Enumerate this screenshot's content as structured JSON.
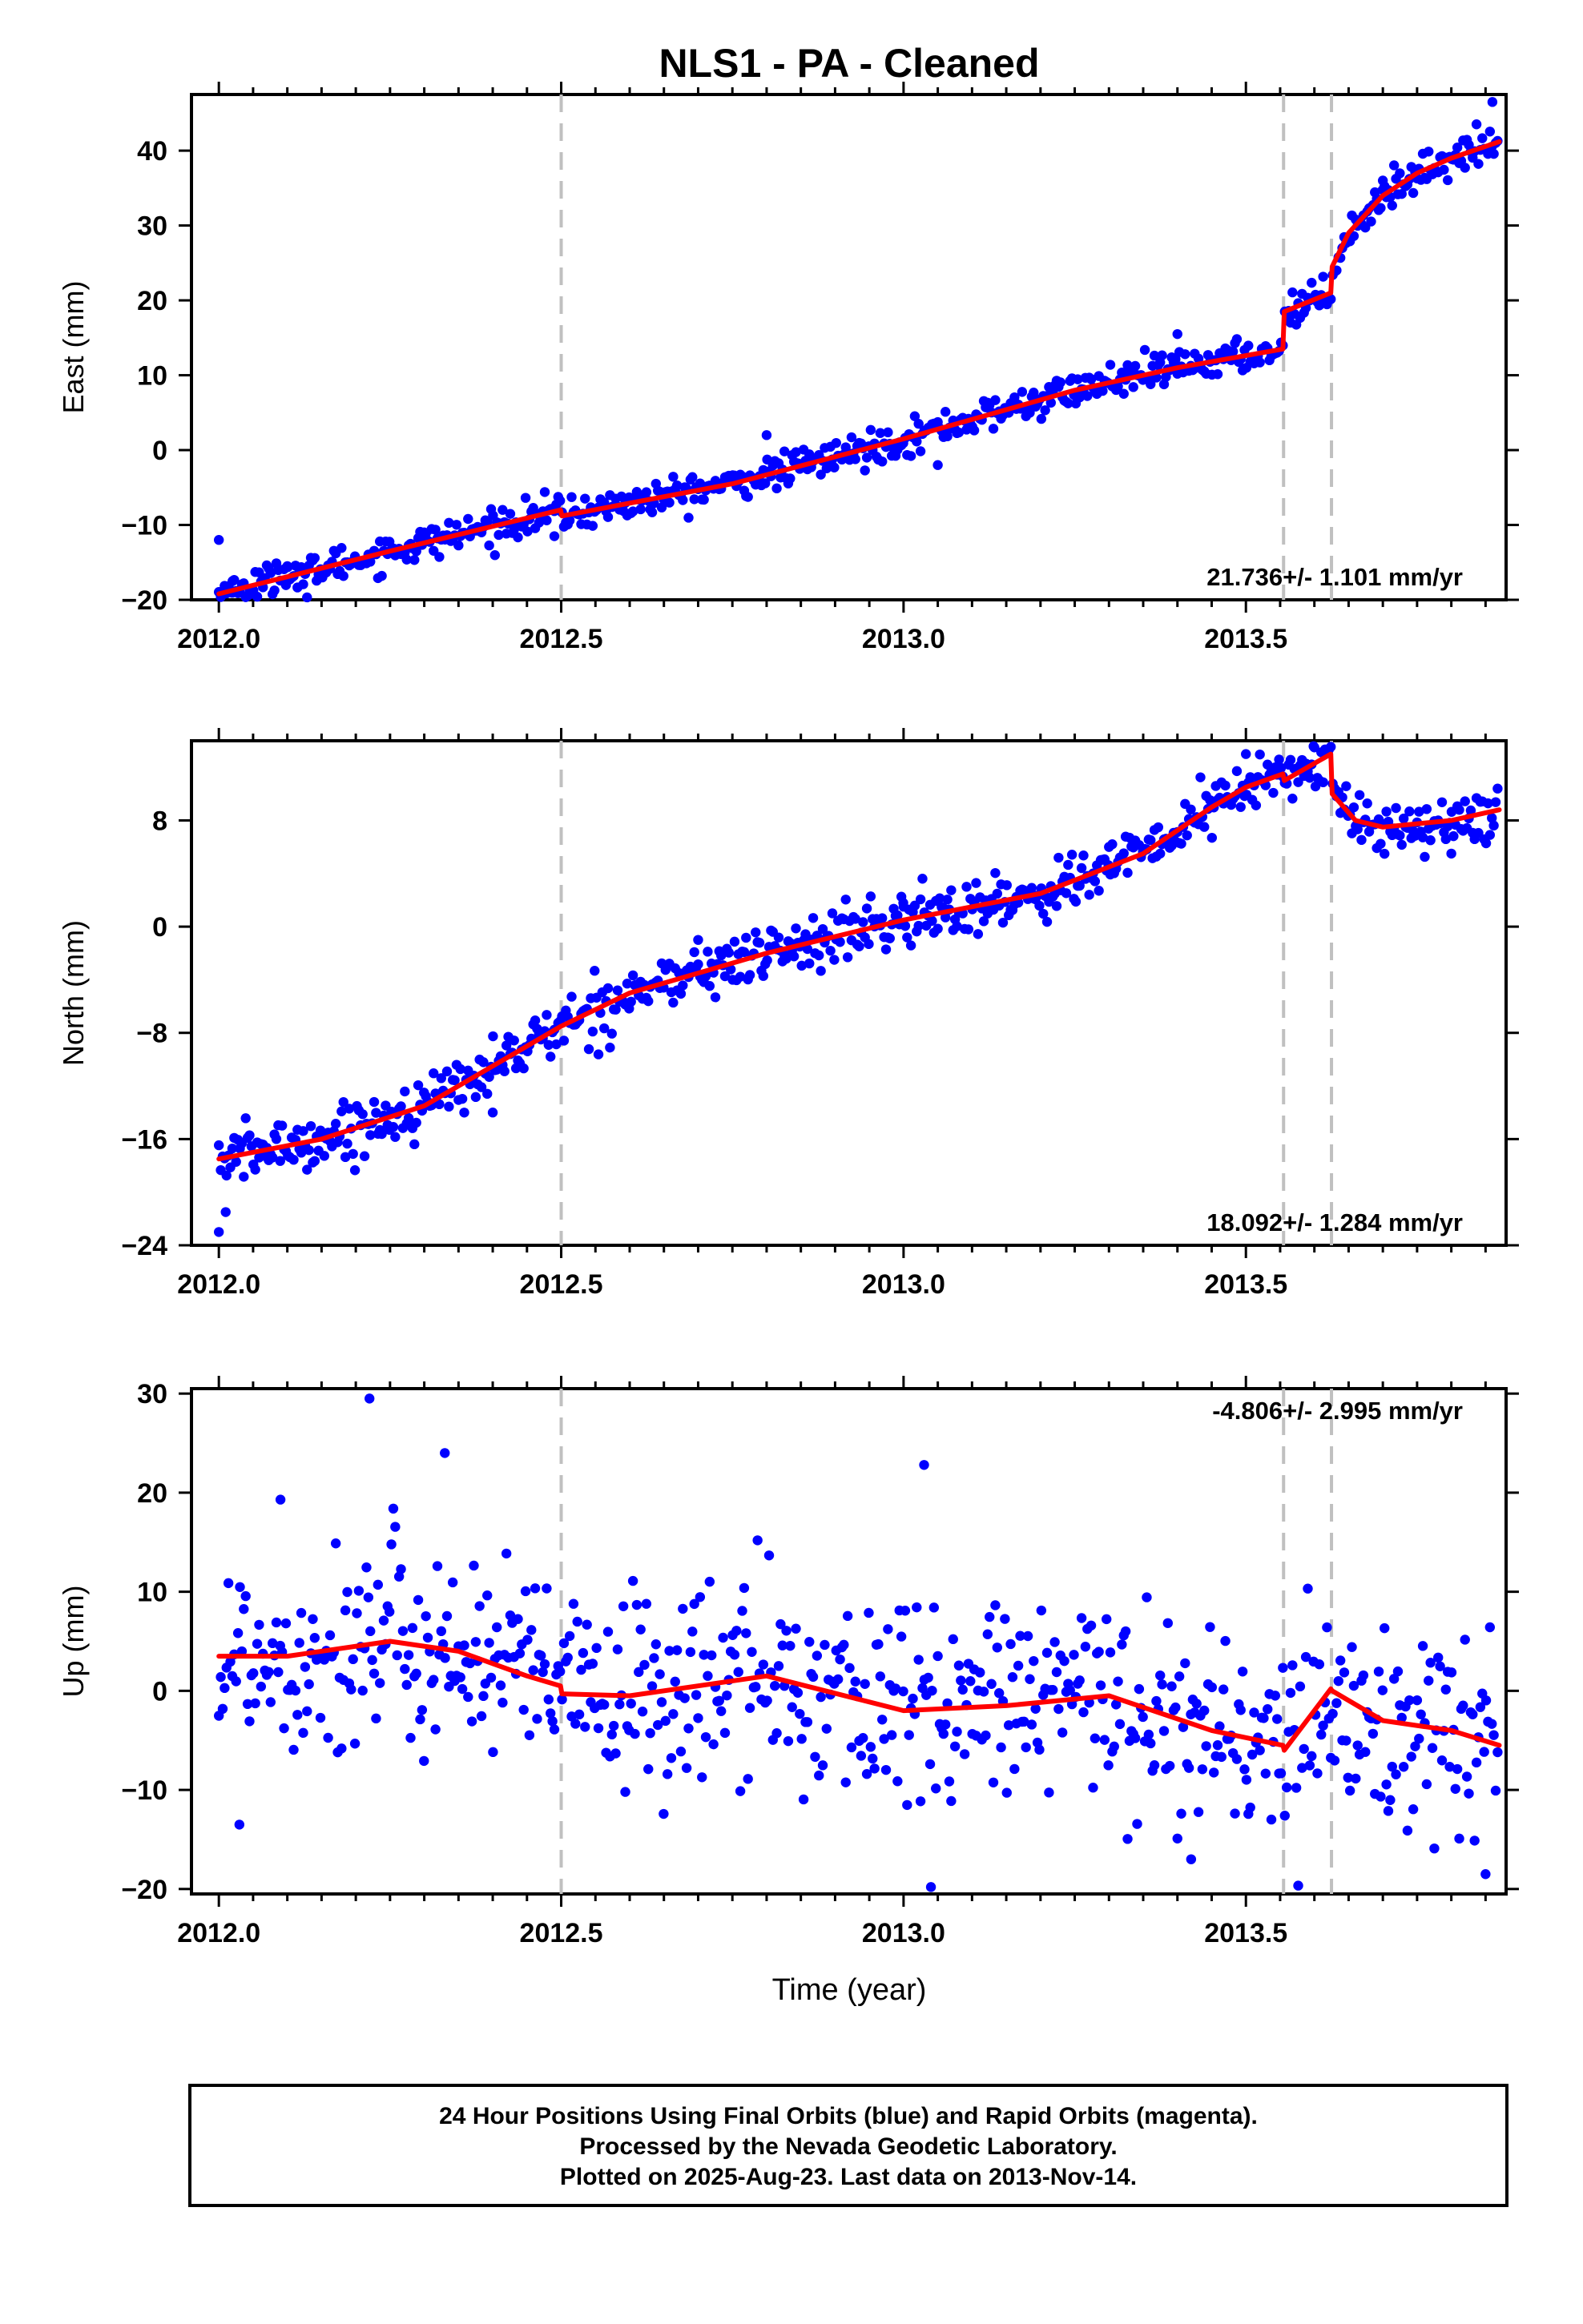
{
  "chart_data": {
    "type": "scatter",
    "title": "NLS1  - PA - Cleaned",
    "xlabel": "Time (year)",
    "xlim": [
      2011.96,
      2013.88
    ],
    "x_ticks": [
      "2012.0",
      "2012.5",
      "2013.0",
      "2013.5"
    ],
    "x_tick_values": [
      2012.0,
      2012.5,
      2013.0,
      2013.5
    ],
    "steps_years": [
      2012.5,
      2013.555,
      2013.625
    ],
    "dot_color": "#0000ff",
    "model_color": "#ff0000",
    "step_line_color": "#c0c0c0",
    "grid": false,
    "panels": [
      {
        "key": "east",
        "ylabel": "East (mm)",
        "ylim": [
          -20,
          47.5
        ],
        "y_ticks": [
          "40",
          "30",
          "20",
          "10",
          "0",
          "−10",
          "−20"
        ],
        "y_tick_values": [
          40,
          30,
          20,
          10,
          0,
          -10,
          -20
        ],
        "rate_label": "21.736+/- 1.101 mm/yr",
        "rate_position": "bottom-right",
        "model_x": [
          2012.0,
          2012.25,
          2012.499,
          2012.501,
          2012.75,
          2013.0,
          2013.25,
          2013.4,
          2013.554,
          2013.556,
          2013.624,
          2013.626,
          2013.65,
          2013.7,
          2013.75,
          2013.8,
          2013.87
        ],
        "model_y": [
          -19.2,
          -13.5,
          -8.0,
          -8.8,
          -4.5,
          1.5,
          8.0,
          11.0,
          13.5,
          18.5,
          21.0,
          24.5,
          29.0,
          34.0,
          37.0,
          39.0,
          41.2
        ],
        "fit_spread": 1.6,
        "sample_points": [
          {
            "x": 2012.0,
            "y": -12.0
          },
          {
            "x": 2012.02,
            "y": -17.5
          },
          {
            "x": 2012.1,
            "y": -15.5
          },
          {
            "x": 2012.3,
            "y": -11.0
          },
          {
            "x": 2012.49,
            "y": -11.5
          },
          {
            "x": 2012.8,
            "y": 2.0
          },
          {
            "x": 2013.05,
            "y": -2.0
          },
          {
            "x": 2013.4,
            "y": 15.5
          },
          {
            "x": 2013.7,
            "y": 36.0
          },
          {
            "x": 2013.86,
            "y": 46.5
          }
        ]
      },
      {
        "key": "north",
        "ylabel": "North (mm)",
        "ylim": [
          -24,
          14
        ],
        "y_ticks": [
          "8",
          "0",
          "−8",
          "−16",
          "−24"
        ],
        "y_tick_values": [
          8,
          0,
          -8,
          -16,
          -24
        ],
        "rate_label": "18.092+/- 1.284 mm/yr",
        "rate_position": "bottom-right",
        "model_x": [
          2012.0,
          2012.15,
          2012.3,
          2012.4,
          2012.5,
          2012.6,
          2012.8,
          2013.0,
          2013.2,
          2013.35,
          2013.45,
          2013.5,
          2013.554,
          2013.556,
          2013.624,
          2013.626,
          2013.66,
          2013.7,
          2013.8,
          2013.87
        ],
        "model_y": [
          -17.5,
          -16.0,
          -13.5,
          -10.5,
          -7.5,
          -5.0,
          -2.0,
          0.5,
          2.5,
          5.5,
          9.0,
          10.5,
          11.5,
          11.0,
          13.0,
          10.0,
          8.0,
          7.5,
          8.0,
          8.8
        ],
        "fit_spread": 1.5,
        "sample_points": [
          {
            "x": 2012.0,
            "y": -23.0
          },
          {
            "x": 2012.01,
            "y": -21.5
          },
          {
            "x": 2012.4,
            "y": -14.0
          },
          {
            "x": 2012.7,
            "y": -1.0
          },
          {
            "x": 2013.0,
            "y": 1.5
          },
          {
            "x": 2013.3,
            "y": 6.0
          },
          {
            "x": 2013.5,
            "y": 13.0
          },
          {
            "x": 2013.6,
            "y": 13.5
          },
          {
            "x": 2013.8,
            "y": 5.5
          }
        ]
      },
      {
        "key": "up",
        "ylabel": "Up (mm)",
        "ylim": [
          -20.5,
          30.5
        ],
        "y_ticks": [
          "30",
          "20",
          "10",
          "0",
          "−10",
          "−20"
        ],
        "y_tick_values": [
          30,
          20,
          10,
          0,
          -10,
          -20
        ],
        "rate_label": "-4.806+/- 2.995 mm/yr",
        "rate_position": "top-right",
        "model_x": [
          2012.0,
          2012.1,
          2012.25,
          2012.35,
          2012.45,
          2012.499,
          2012.501,
          2012.6,
          2012.8,
          2013.0,
          2013.15,
          2013.3,
          2013.45,
          2013.554,
          2013.556,
          2013.624,
          2013.626,
          2013.7,
          2013.8,
          2013.87
        ],
        "model_y": [
          3.5,
          3.5,
          5.0,
          4.0,
          1.5,
          0.5,
          -0.3,
          -0.5,
          1.5,
          -2.0,
          -1.5,
          -0.5,
          -4.0,
          -5.5,
          -6.0,
          0.2,
          0.0,
          -3.0,
          -4.0,
          -5.5
        ],
        "fit_spread": 7.5,
        "sample_points": [
          {
            "x": 2012.22,
            "y": 29.5
          },
          {
            "x": 2012.33,
            "y": 24.0
          },
          {
            "x": 2013.03,
            "y": 22.8
          },
          {
            "x": 2012.03,
            "y": -13.5
          },
          {
            "x": 2013.04,
            "y": -19.8
          },
          {
            "x": 2013.42,
            "y": -17.0
          },
          {
            "x": 2013.85,
            "y": -18.5
          },
          {
            "x": 2012.09,
            "y": 19.3
          }
        ]
      }
    ]
  },
  "footer": {
    "line1": "24 Hour Positions Using Final Orbits (blue) and Rapid Orbits (magenta).",
    "line2": "Processed by the Nevada Geodetic Laboratory.",
    "line3": "Plotted on 2025-Aug-23. Last data on 2013-Nov-14."
  }
}
